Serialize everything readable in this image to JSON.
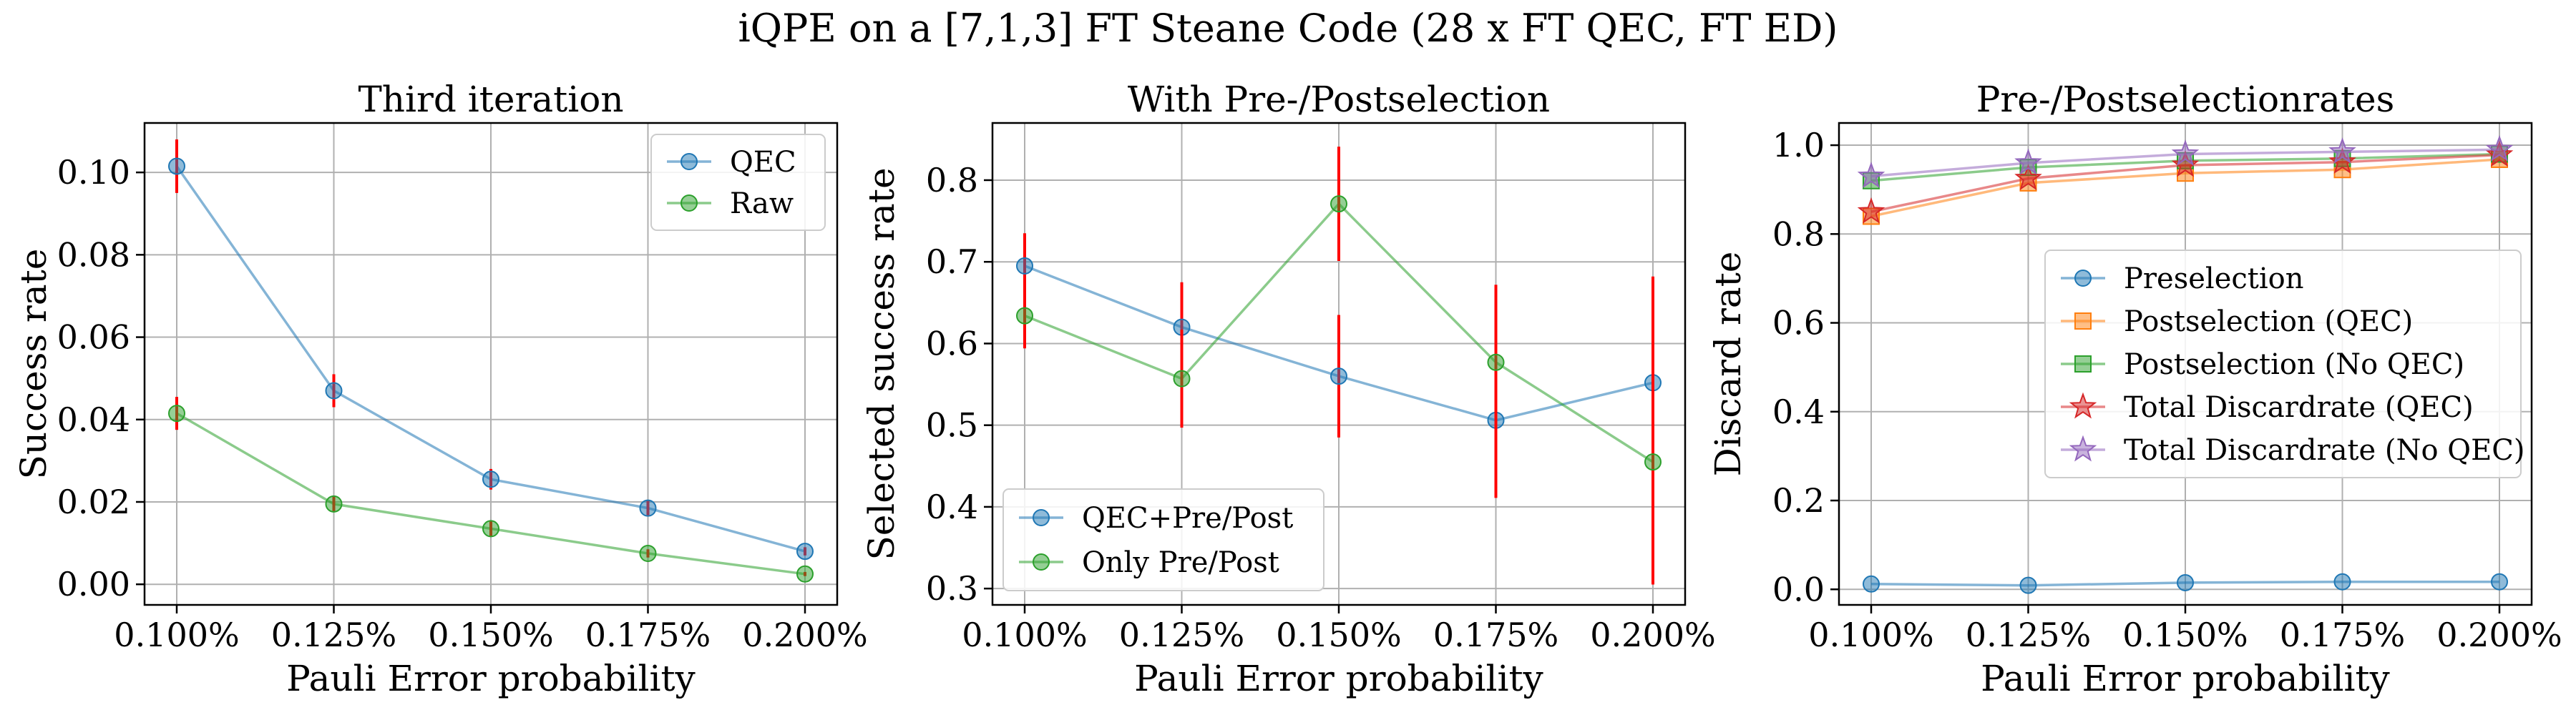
{
  "figure": {
    "title": "iQPE on a [7,1,3] FT Steane Code (28 x FT QEC, FT ED)"
  },
  "chart_data": [
    {
      "type": "line",
      "title": "Third iteration",
      "xlabel": "Pauli Error probability",
      "ylabel": "Success rate",
      "categories": [
        "0.100%",
        "0.125%",
        "0.150%",
        "0.175%",
        "0.200%"
      ],
      "x": [
        0.1,
        0.125,
        0.15,
        0.175,
        0.2
      ],
      "ylim": [
        -0.005,
        0.112
      ],
      "yticks": [
        "0.00",
        "0.02",
        "0.04",
        "0.06",
        "0.08",
        "0.10"
      ],
      "ytick_values": [
        0.0,
        0.02,
        0.04,
        0.06,
        0.08,
        0.1
      ],
      "grid": true,
      "legend_position": "top-right",
      "series": [
        {
          "name": "QEC",
          "color": "#1f77b4",
          "marker": "circle",
          "values": [
            0.1015,
            0.047,
            0.0255,
            0.0185,
            0.008
          ],
          "errors": [
            0.0065,
            0.004,
            0.0025,
            0.002,
            0.001
          ]
        },
        {
          "name": "Raw",
          "color": "#2ca02c",
          "marker": "circle",
          "values": [
            0.0415,
            0.0195,
            0.0135,
            0.0075,
            0.0025
          ],
          "errors": [
            0.004,
            0.002,
            0.002,
            0.001,
            0.0005
          ]
        }
      ]
    },
    {
      "type": "line",
      "title": "With Pre-/Postselection",
      "xlabel": "Pauli Error probability",
      "ylabel": "Selected success rate",
      "categories": [
        "0.100%",
        "0.125%",
        "0.150%",
        "0.175%",
        "0.200%"
      ],
      "x": [
        0.1,
        0.125,
        0.15,
        0.175,
        0.2
      ],
      "ylim": [
        0.28,
        0.87
      ],
      "yticks": [
        "0.3",
        "0.4",
        "0.5",
        "0.6",
        "0.7",
        "0.8"
      ],
      "ytick_values": [
        0.3,
        0.4,
        0.5,
        0.6,
        0.7,
        0.8
      ],
      "grid": true,
      "legend_position": "bottom-left",
      "series": [
        {
          "name": "QEC+Pre/Post",
          "color": "#1f77b4",
          "marker": "circle",
          "values": [
            0.695,
            0.62,
            0.56,
            0.506,
            0.552
          ],
          "errors": [
            0.04,
            0.055,
            0.075,
            0.095,
            0.13
          ]
        },
        {
          "name": "Only Pre/Post",
          "color": "#2ca02c",
          "marker": "circle",
          "values": [
            0.634,
            0.557,
            0.771,
            0.577,
            0.455
          ],
          "errors": [
            0.04,
            0.06,
            0.07,
            0.095,
            0.15
          ]
        }
      ]
    },
    {
      "type": "line",
      "title": "Pre-/Postselectionrates",
      "xlabel": "Pauli Error probability",
      "ylabel": "Discard rate",
      "categories": [
        "0.100%",
        "0.125%",
        "0.150%",
        "0.175%",
        "0.200%"
      ],
      "x": [
        0.1,
        0.125,
        0.15,
        0.175,
        0.2
      ],
      "ylim": [
        -0.035,
        1.05
      ],
      "yticks": [
        "0.0",
        "0.2",
        "0.4",
        "0.6",
        "0.8",
        "1.0"
      ],
      "ytick_values": [
        0.0,
        0.2,
        0.4,
        0.6,
        0.8,
        1.0
      ],
      "grid": true,
      "legend_position": "center-right",
      "series": [
        {
          "name": "Preselection",
          "color": "#1f77b4",
          "marker": "circle",
          "values": [
            0.012,
            0.009,
            0.015,
            0.017,
            0.017
          ]
        },
        {
          "name": "Postselection (QEC)",
          "color": "#ff7f0e",
          "marker": "square",
          "values": [
            0.84,
            0.915,
            0.937,
            0.945,
            0.968
          ]
        },
        {
          "name": "Postselection (No QEC)",
          "color": "#2ca02c",
          "marker": "square",
          "values": [
            0.92,
            0.95,
            0.965,
            0.97,
            0.98
          ]
        },
        {
          "name": "Total Discardrate (QEC)",
          "color": "#d62728",
          "marker": "star",
          "values": [
            0.85,
            0.925,
            0.955,
            0.962,
            0.978
          ]
        },
        {
          "name": "Total Discardrate (No QEC)",
          "color": "#9467bd",
          "marker": "star",
          "values": [
            0.93,
            0.96,
            0.98,
            0.985,
            0.99
          ]
        }
      ]
    }
  ]
}
